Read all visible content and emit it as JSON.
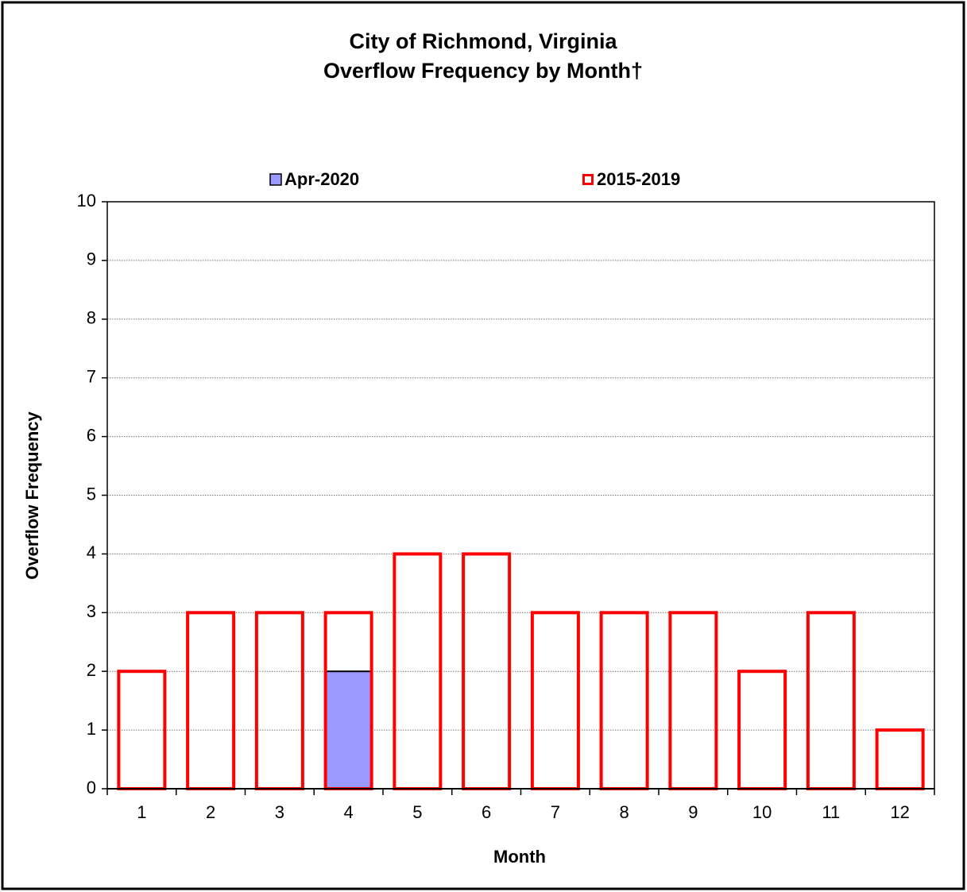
{
  "chart_data": {
    "type": "bar",
    "title": [
      "City of Richmond, Virginia",
      "Overflow Frequency by Month†"
    ],
    "x_label": "Month",
    "y_label": "Overflow Frequency",
    "categories": [
      1,
      2,
      3,
      4,
      5,
      6,
      7,
      8,
      9,
      10,
      11,
      12
    ],
    "series": [
      {
        "name": "Apr-2020",
        "color": "#9999ff",
        "style": "filled",
        "values": [
          null,
          null,
          null,
          2,
          null,
          null,
          null,
          null,
          null,
          null,
          null,
          null
        ]
      },
      {
        "name": "2015-2019",
        "color": "#ff0000",
        "style": "outline",
        "values": [
          2,
          3,
          3,
          3,
          4,
          4,
          3,
          3,
          3,
          2,
          3,
          1
        ]
      }
    ],
    "ylim": [
      0,
      10
    ],
    "yticks": [
      0,
      1,
      2,
      3,
      4,
      5,
      6,
      7,
      8,
      9,
      10
    ],
    "grid": true,
    "legend": "top"
  }
}
